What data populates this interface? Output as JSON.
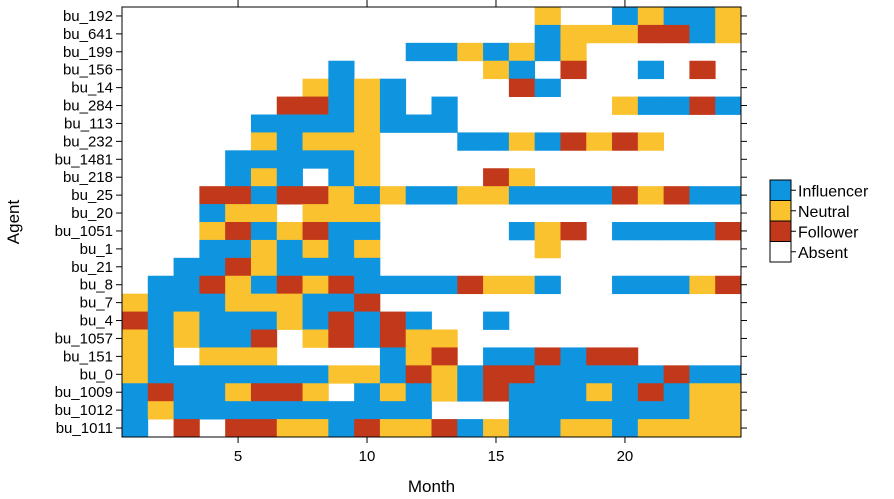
{
  "chart_data": {
    "type": "heatmap",
    "xlabel": "Month",
    "ylabel": "Agent",
    "x_ticks": [
      5,
      10,
      15,
      20
    ],
    "x_range": [
      0.5,
      24.5
    ],
    "categories_y": [
      "bu_192",
      "bu_641",
      "bu_199",
      "bu_156",
      "bu_14",
      "bu_284",
      "bu_113",
      "bu_232",
      "bu_1481",
      "bu_218",
      "bu_25",
      "bu_20",
      "bu_1051",
      "bu_1",
      "bu_21",
      "bu_8",
      "bu_7",
      "bu_4",
      "bu_1057",
      "bu_151",
      "bu_0",
      "bu_1009",
      "bu_1012",
      "bu_1011"
    ],
    "legend": [
      {
        "code": "I",
        "label": "Influencer",
        "color": "#0f95e0"
      },
      {
        "code": "N",
        "label": "Neutral",
        "color": "#f9c22e"
      },
      {
        "code": "F",
        "label": "Follower",
        "color": "#c2381a"
      },
      {
        "code": "A",
        "label": "Absent",
        "color": "#ffffff"
      }
    ],
    "legend_position": "right",
    "rows_by_month": {
      "bu_192": "AAAAAAAAAAAAAAAANAAINIIN",
      "bu_641": "AAAAAAAAAAAAAAAAINNNFFIN",
      "bu_199": "AAAAAAAAAAAIINININAAAAAA",
      "bu_156": "AAAAAAAAIAAAAANIAFAAIAFA",
      "bu_14": "AAAAAAANINIAAAAFIAAAAAAA",
      "bu_284": "AAAAAAFFINIAIAAAAAANIIFI",
      "bu_113": "AAAAAIIIINIIIAAAAAAAAAAA",
      "bu_232": "AAAAANINNNAAAIINIFNFNAAA",
      "bu_1481": "AAAAIIIIINAAAAAAAAAAAAAA",
      "bu_218": "AAAAINIAINAAAAFNAAAAAAAA",
      "bu_25": "AAAFFIFFNINIINNIIIIFNFII",
      "bu_20": "AAAINNANNNAAAAAAAAAAAAAA",
      "bu_1051": "AAANFINFIIAAAAAINFAIIIIF",
      "bu_1": "AAAIINININAAAAAANAAAAAAA",
      "bu_21": "AAIIFNIIIIAAAAAAAAAAAAAA",
      "bu_8": "AIIFNIFNFIIIIFNNIAAIIINF",
      "bu_7": "NIIINNNIIFAAAAAAAAAAAAAA",
      "bu_4": "FINIIINIFIFIAAIAAAAAAAAA",
      "bu_1057": "NINIIFANFIFNNAAAAAAAAAAA",
      "bu_151": "NIANNNAAAAINFAIIFIFFAAAA",
      "bu_0": "NIIIIIIINNIFNIFFIIIIIFII",
      "bu_1009": "IFIINFFNAININIFIIINIFINN",
      "bu_1012": "INIIIIIIIIIIAAAIIIIIIINN",
      "bu_1011": "IAFAFFNNIFNNFINIINNINNNN"
    }
  }
}
